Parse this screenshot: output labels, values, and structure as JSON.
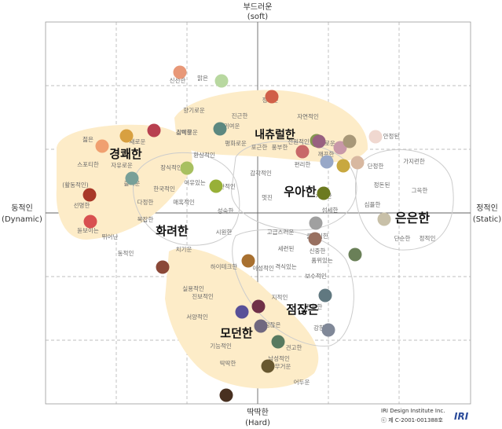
{
  "axes": {
    "top_ko": "부드러운",
    "top_en": "(soft)",
    "bottom_ko": "딱딱한",
    "bottom_en": "(Hard)",
    "left_ko": "동적인",
    "left_en": "(Dynamic)",
    "right_ko": "정적인",
    "right_en": "(Static)"
  },
  "credit": {
    "line1": "IRI Design Institute Inc.",
    "line2": "ⓒ 제 C-2001-001388호",
    "logo_text": "IRI"
  },
  "groups": [
    {
      "label": "경쾌한",
      "shade": "#fdecc8"
    },
    {
      "label": "내츄럴한",
      "shade": "#fdecc8"
    },
    {
      "label": "우아한",
      "shade": "none"
    },
    {
      "label": "은은한",
      "shade": "none"
    },
    {
      "label": "화려한",
      "shade": "none"
    },
    {
      "label": "점잖은",
      "shade": "none"
    },
    {
      "label": "모던한",
      "shade": "#fdecc8"
    }
  ],
  "words": [
    "신선한",
    "맑은",
    "향기로운",
    "진근한",
    "정다운",
    "자연적인",
    "감미로운",
    "귀여운",
    "평화로운",
    "포근한",
    "풍부한",
    "전원적인",
    "안정된",
    "깨끗한",
    "새로운",
    "젊은",
    "소박한",
    "단정한",
    "가지런한",
    "스포티한",
    "자유로운",
    "즐거운",
    "장식적인",
    "환상적인",
    "여유있는",
    "낭만적인",
    "감각적인",
    "편리한",
    "(활동적인)",
    "정돈된",
    "조화로운",
    "한국적인",
    "다정한",
    "그윽한",
    "선명한",
    "매혹적인",
    "멋진",
    "섬세한",
    "차분한",
    "복잡한",
    "성숙한",
    "심플한",
    "돋보이는",
    "뛰어난",
    "시원한",
    "고급스러운",
    "클래식한",
    "단순한",
    "정적인",
    "세련된",
    "품위있는",
    "치기운",
    "하이테크한",
    "이성적인",
    "격식있는",
    "신중한",
    "동적인",
    "보수적인",
    "실용적인",
    "진보적인",
    "지적인",
    "서양적인",
    "튼튼한",
    "점잖은",
    "기능적인",
    "견고한",
    "남성적인",
    "딱딱한",
    "강한",
    "무거운",
    "어두운"
  ],
  "swatches": [
    {
      "c": "#e89878"
    },
    {
      "c": "#b8d8a0"
    },
    {
      "c": "#d8a040"
    },
    {
      "c": "#b84050"
    },
    {
      "c": "#f0a070"
    },
    {
      "c": "#78a098"
    },
    {
      "c": "#a8c060"
    },
    {
      "c": "#a83828"
    },
    {
      "c": "#d85050"
    },
    {
      "c": "#d06048"
    },
    {
      "c": "#5c8880"
    },
    {
      "c": "#c86868"
    },
    {
      "c": "#849850"
    },
    {
      "c": "#986080"
    },
    {
      "c": "#c898a8"
    },
    {
      "c": "#f0d8d0"
    },
    {
      "c": "#a89878"
    },
    {
      "c": "#98a8c8"
    },
    {
      "c": "#c8a840"
    },
    {
      "c": "#d8b8a0"
    },
    {
      "c": "#98b038"
    },
    {
      "c": "#6c7a20"
    },
    {
      "c": "#c8c0a8"
    },
    {
      "c": "#a0a0a0"
    },
    {
      "c": "#987060"
    },
    {
      "c": "#6a8058"
    },
    {
      "c": "#a87030"
    },
    {
      "c": "#8a4838"
    },
    {
      "c": "#703048"
    },
    {
      "c": "#585098"
    },
    {
      "c": "#706880"
    },
    {
      "c": "#587a60"
    },
    {
      "c": "#607880"
    },
    {
      "c": "#808898"
    },
    {
      "c": "#685830"
    },
    {
      "c": "#483020"
    }
  ]
}
